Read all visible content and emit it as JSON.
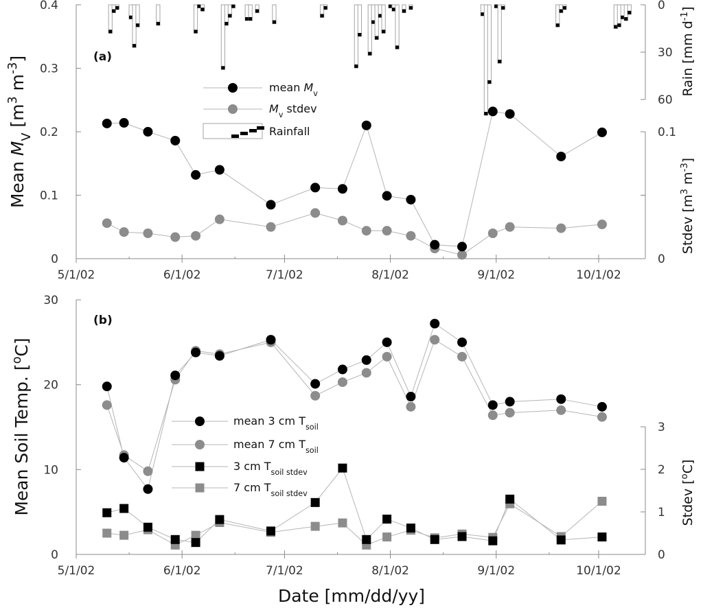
{
  "chart_data": [
    {
      "panel": "(a)",
      "type": "line",
      "xlabel": "",
      "x_ticks": [
        "5/1/02",
        "6/1/02",
        "7/1/02",
        "8/1/02",
        "9/1/02",
        "10/1/02"
      ],
      "ylabel": "Mean M_V [m^3 m^-3]",
      "ylim": [
        0,
        0.4
      ],
      "y_ticks": [
        "0",
        "0.1",
        "0.2",
        "0.3",
        "0.4"
      ],
      "ylabel_right_top": "Rain [mm d^-1]",
      "rain_axis_ticks": [
        "0",
        "30",
        "60"
      ],
      "rain_lim": [
        0,
        60
      ],
      "ylabel_right_bottom": "Stdev [m^3 m^-3]",
      "stdev_axis_ticks": [
        "0",
        "0.1"
      ],
      "stdev_lim": [
        0,
        0.2
      ],
      "legend": [
        "mean M_v",
        "M_v stdev",
        "Rainfall"
      ],
      "series": [
        {
          "name": "mean M_v",
          "axis": "left",
          "points": [
            [
              "2002-05-10",
              0.213
            ],
            [
              "2002-05-15",
              0.214
            ],
            [
              "2002-05-22",
              0.2
            ],
            [
              "2002-05-30",
              0.186
            ],
            [
              "2002-06-05",
              0.132
            ],
            [
              "2002-06-12",
              0.14
            ],
            [
              "2002-06-27",
              0.085
            ],
            [
              "2002-07-10",
              0.112
            ],
            [
              "2002-07-18",
              0.11
            ],
            [
              "2002-07-25",
              0.21
            ],
            [
              "2002-07-31",
              0.099
            ],
            [
              "2002-08-07",
              0.093
            ],
            [
              "2002-08-14",
              0.022
            ],
            [
              "2002-08-22",
              0.019
            ],
            [
              "2002-08-31",
              0.232
            ],
            [
              "2002-09-05",
              0.228
            ],
            [
              "2002-09-20",
              0.161
            ],
            [
              "2002-10-02",
              0.199
            ]
          ]
        },
        {
          "name": "M_v stdev",
          "axis": "stdev",
          "points": [
            [
              "2002-05-10",
              0.028
            ],
            [
              "2002-05-15",
              0.021
            ],
            [
              "2002-05-22",
              0.02
            ],
            [
              "2002-05-30",
              0.017
            ],
            [
              "2002-06-05",
              0.018
            ],
            [
              "2002-06-12",
              0.031
            ],
            [
              "2002-06-27",
              0.025
            ],
            [
              "2002-07-10",
              0.036
            ],
            [
              "2002-07-18",
              0.03
            ],
            [
              "2002-07-25",
              0.022
            ],
            [
              "2002-07-31",
              0.022
            ],
            [
              "2002-08-07",
              0.018
            ],
            [
              "2002-08-14",
              0.008
            ],
            [
              "2002-08-22",
              0.003
            ],
            [
              "2002-08-31",
              0.02
            ],
            [
              "2002-09-05",
              0.025
            ],
            [
              "2002-09-20",
              0.024
            ],
            [
              "2002-10-02",
              0.027
            ]
          ]
        },
        {
          "name": "Rainfall",
          "axis": "rain",
          "type": "bar",
          "bars": [
            [
              "2002-05-11",
              18
            ],
            [
              "2002-05-12",
              5
            ],
            [
              "2002-05-13",
              3
            ],
            [
              "2002-05-17",
              9
            ],
            [
              "2002-05-18",
              27
            ],
            [
              "2002-05-19",
              14
            ],
            [
              "2002-05-25",
              13
            ],
            [
              "2002-06-05",
              18
            ],
            [
              "2002-06-06",
              2
            ],
            [
              "2002-06-07",
              4
            ],
            [
              "2002-06-13",
              41
            ],
            [
              "2002-06-14",
              13
            ],
            [
              "2002-06-15",
              8
            ],
            [
              "2002-06-16",
              2
            ],
            [
              "2002-06-20",
              10
            ],
            [
              "2002-06-21",
              10
            ],
            [
              "2002-06-23",
              5
            ],
            [
              "2002-06-28",
              12
            ],
            [
              "2002-07-12",
              8
            ],
            [
              "2002-07-13",
              3
            ],
            [
              "2002-07-22",
              40
            ],
            [
              "2002-07-23",
              20
            ],
            [
              "2002-07-26",
              32
            ],
            [
              "2002-07-27",
              12
            ],
            [
              "2002-07-28",
              22
            ],
            [
              "2002-07-29",
              8
            ],
            [
              "2002-07-30",
              18
            ],
            [
              "2002-08-01",
              2
            ],
            [
              "2002-08-02",
              4
            ],
            [
              "2002-08-03",
              28
            ],
            [
              "2002-08-05",
              5
            ],
            [
              "2002-08-07",
              3
            ],
            [
              "2002-08-28",
              7
            ],
            [
              "2002-08-29",
              70
            ],
            [
              "2002-08-30",
              50
            ],
            [
              "2002-09-01",
              2
            ],
            [
              "2002-09-02",
              37
            ],
            [
              "2002-09-03",
              3
            ],
            [
              "2002-09-19",
              14
            ],
            [
              "2002-09-20",
              5
            ],
            [
              "2002-09-21",
              3
            ],
            [
              "2002-10-06",
              15
            ],
            [
              "2002-10-07",
              14
            ],
            [
              "2002-10-08",
              9
            ],
            [
              "2002-10-09",
              10
            ],
            [
              "2002-10-10",
              6
            ]
          ]
        }
      ]
    },
    {
      "panel": "(b)",
      "type": "line",
      "xlabel": "Date [mm/dd/yy]",
      "x_ticks": [
        "5/1/02",
        "6/1/02",
        "7/1/02",
        "8/1/02",
        "9/1/02",
        "10/1/02"
      ],
      "ylabel": "Mean Soil Temp. [oC]",
      "ylim": [
        0,
        30
      ],
      "y_ticks": [
        "0",
        "10",
        "20",
        "30"
      ],
      "ylabel_right": "Stdev [oC]",
      "stdev_lim": [
        0,
        3
      ],
      "stdev_axis_ticks": [
        "0",
        "1",
        "2",
        "3"
      ],
      "legend": [
        "mean 3 cm T_soil",
        "mean 7 cm T_soil",
        "3 cm T_soil stdev",
        "7 cm T_soil stdev"
      ],
      "series": [
        {
          "name": "mean 3 cm T_soil",
          "axis": "left",
          "points": [
            [
              "2002-05-10",
              19.8
            ],
            [
              "2002-05-15",
              11.4
            ],
            [
              "2002-05-22",
              7.7
            ],
            [
              "2002-05-30",
              21.1
            ],
            [
              "2002-06-05",
              23.8
            ],
            [
              "2002-06-12",
              23.4
            ],
            [
              "2002-06-27",
              25.3
            ],
            [
              "2002-07-10",
              20.1
            ],
            [
              "2002-07-18",
              21.8
            ],
            [
              "2002-07-25",
              22.9
            ],
            [
              "2002-07-31",
              25.0
            ],
            [
              "2002-08-07",
              18.6
            ],
            [
              "2002-08-14",
              27.2
            ],
            [
              "2002-08-22",
              25.0
            ],
            [
              "2002-08-31",
              17.6
            ],
            [
              "2002-09-05",
              18.0
            ],
            [
              "2002-09-20",
              18.3
            ],
            [
              "2002-10-02",
              17.4
            ]
          ]
        },
        {
          "name": "mean 7 cm T_soil",
          "axis": "left",
          "points": [
            [
              "2002-05-10",
              17.6
            ],
            [
              "2002-05-15",
              11.7
            ],
            [
              "2002-05-22",
              9.8
            ],
            [
              "2002-05-30",
              20.6
            ],
            [
              "2002-06-05",
              24.0
            ],
            [
              "2002-06-12",
              23.6
            ],
            [
              "2002-06-27",
              25.0
            ],
            [
              "2002-07-10",
              18.7
            ],
            [
              "2002-07-18",
              20.3
            ],
            [
              "2002-07-25",
              21.4
            ],
            [
              "2002-07-31",
              23.3
            ],
            [
              "2002-08-07",
              17.4
            ],
            [
              "2002-08-14",
              25.3
            ],
            [
              "2002-08-22",
              23.3
            ],
            [
              "2002-08-31",
              16.4
            ],
            [
              "2002-09-05",
              16.7
            ],
            [
              "2002-09-20",
              17.0
            ],
            [
              "2002-10-02",
              16.2
            ]
          ]
        },
        {
          "name": "3 cm T_soil stdev",
          "axis": "stdev",
          "marker": "square",
          "points": [
            [
              "2002-05-10",
              0.98
            ],
            [
              "2002-05-15",
              1.08
            ],
            [
              "2002-05-22",
              0.64
            ],
            [
              "2002-05-30",
              0.35
            ],
            [
              "2002-06-05",
              0.28
            ],
            [
              "2002-06-12",
              0.82
            ],
            [
              "2002-06-27",
              0.55
            ],
            [
              "2002-07-10",
              1.22
            ],
            [
              "2002-07-18",
              2.03
            ],
            [
              "2002-07-25",
              0.35
            ],
            [
              "2002-07-31",
              0.83
            ],
            [
              "2002-08-07",
              0.62
            ],
            [
              "2002-08-14",
              0.35
            ],
            [
              "2002-08-22",
              0.42
            ],
            [
              "2002-08-31",
              0.32
            ],
            [
              "2002-09-05",
              1.3
            ],
            [
              "2002-09-20",
              0.34
            ],
            [
              "2002-10-02",
              0.41
            ]
          ]
        },
        {
          "name": "7 cm T_soil stdev",
          "axis": "stdev",
          "marker": "square",
          "points": [
            [
              "2002-05-10",
              0.5
            ],
            [
              "2002-05-15",
              0.45
            ],
            [
              "2002-05-22",
              0.58
            ],
            [
              "2002-05-30",
              0.22
            ],
            [
              "2002-06-05",
              0.45
            ],
            [
              "2002-06-12",
              0.75
            ],
            [
              "2002-06-27",
              0.52
            ],
            [
              "2002-07-10",
              0.66
            ],
            [
              "2002-07-18",
              0.74
            ],
            [
              "2002-07-25",
              0.22
            ],
            [
              "2002-07-31",
              0.41
            ],
            [
              "2002-08-07",
              0.57
            ],
            [
              "2002-08-14",
              0.39
            ],
            [
              "2002-08-22",
              0.48
            ],
            [
              "2002-08-31",
              0.4
            ],
            [
              "2002-09-05",
              1.19
            ],
            [
              "2002-09-20",
              0.42
            ],
            [
              "2002-10-02",
              1.25
            ]
          ]
        }
      ]
    }
  ],
  "colors": {
    "black_marker": "#000000",
    "gray_marker": "#8c8c8c",
    "line": "#b4b4b4",
    "axis": "#888888"
  }
}
